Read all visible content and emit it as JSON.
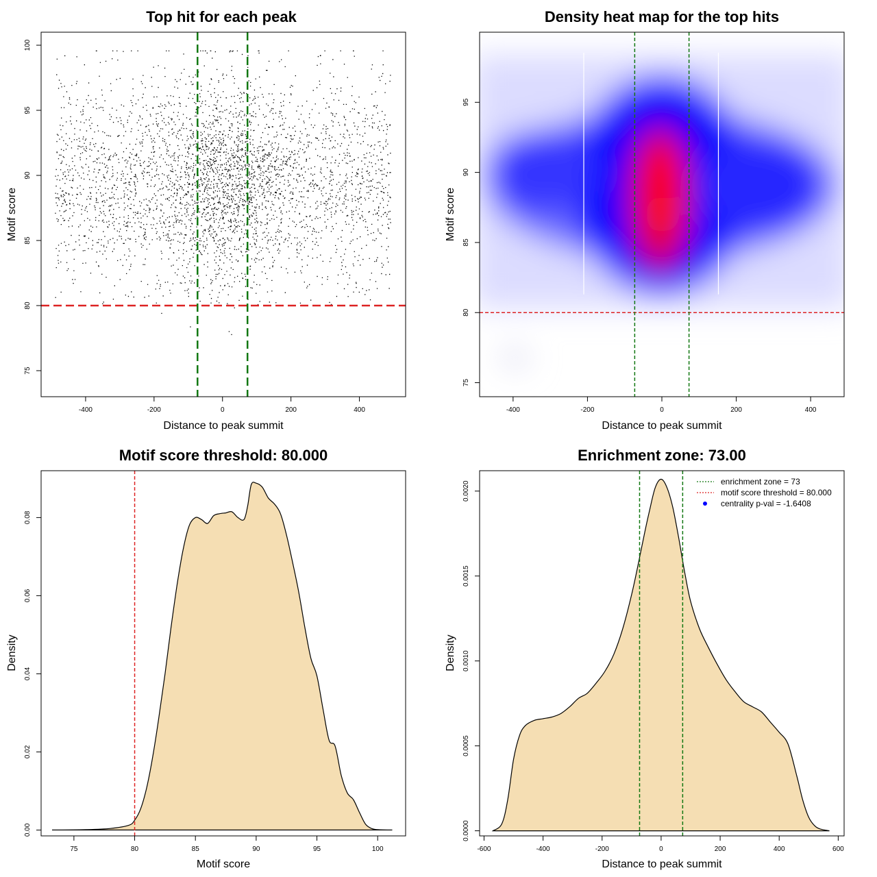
{
  "colors": {
    "points": "#000000",
    "threshold_line": "#dd2222",
    "zone_line": "#117711",
    "density_fill": "#f5deb3",
    "heat_low": "#0000ff",
    "heat_high": "#ff0000",
    "legend_point": "#0000ff"
  },
  "chart_data": [
    {
      "id": "scatter",
      "type": "scatter",
      "title": "Top hit for each peak",
      "xlabel": "Distance to peak summit",
      "ylabel": "Motif score",
      "xlim": [
        -530,
        535
      ],
      "ylim": [
        73,
        101
      ],
      "xticks": [
        -400,
        -200,
        0,
        200,
        400
      ],
      "yticks": [
        75,
        80,
        85,
        90,
        95,
        100
      ],
      "x_range": [
        -490,
        490
      ],
      "hline": 80,
      "vlines": [
        -73,
        73
      ],
      "point_count": 9000
    },
    {
      "id": "heatmap",
      "type": "heatmap",
      "title": "Density heat map for the top hits",
      "xlabel": "Distance to peak summit",
      "ylabel": "Motif score",
      "xlim": [
        -490,
        490
      ],
      "ylim": [
        74,
        100
      ],
      "xticks": [
        -400,
        -200,
        0,
        200,
        400
      ],
      "yticks": [
        75,
        80,
        85,
        90,
        95
      ],
      "hline": 80,
      "vlines": [
        -73,
        73
      ],
      "white_vlines": [
        -210,
        152
      ],
      "hotspots": [
        {
          "x": 0,
          "y": 90,
          "level": "max"
        },
        {
          "x": 0,
          "y": 87,
          "level": "high"
        }
      ]
    },
    {
      "id": "score-density",
      "type": "area",
      "title": "Motif score threshold: 80.000",
      "xlabel": "Motif score",
      "ylabel": "Density",
      "xlim": [
        72.3,
        102.3
      ],
      "ylim": [
        -0.0015,
        0.092
      ],
      "xticks": [
        75,
        80,
        85,
        90,
        95,
        100
      ],
      "yticks": [
        0.0,
        0.02,
        0.04,
        0.06,
        0.08
      ],
      "ytick_labels": [
        "0.00",
        "0.02",
        "0.04",
        "0.06",
        "0.08"
      ],
      "vline": 80,
      "x": [
        73.2,
        76,
        78,
        79.5,
        80,
        80.5,
        81,
        81.5,
        82,
        82.5,
        83,
        83.5,
        84,
        84.5,
        85,
        85.5,
        86,
        86.5,
        87,
        87.5,
        88,
        88.5,
        89,
        89.3,
        89.6,
        90,
        90.5,
        91,
        91.5,
        92,
        92.5,
        93,
        93.5,
        94,
        94.5,
        95,
        95.5,
        96,
        96.5,
        97,
        97.5,
        98,
        98.5,
        99,
        99.5,
        100,
        101.2
      ],
      "y": [
        0.0,
        0.0001,
        0.0004,
        0.0012,
        0.0025,
        0.0055,
        0.011,
        0.019,
        0.029,
        0.04,
        0.052,
        0.063,
        0.072,
        0.078,
        0.08,
        0.0795,
        0.0785,
        0.0805,
        0.081,
        0.0812,
        0.0815,
        0.08,
        0.0795,
        0.083,
        0.0885,
        0.0888,
        0.0878,
        0.085,
        0.0835,
        0.081,
        0.0755,
        0.0685,
        0.061,
        0.052,
        0.044,
        0.0395,
        0.031,
        0.023,
        0.0215,
        0.014,
        0.0095,
        0.0078,
        0.0045,
        0.0015,
        0.0004,
        0.0001,
        0.0
      ]
    },
    {
      "id": "distance-density",
      "type": "area",
      "title": "Enrichment zone: 73.00",
      "xlabel": "Distance to peak summit",
      "ylabel": "Density",
      "xlim": [
        -615,
        620
      ],
      "ylim": [
        -3e-05,
        0.00212
      ],
      "xticks": [
        -600,
        -400,
        -200,
        0,
        200,
        400,
        600
      ],
      "yticks": [
        0.0,
        0.0005,
        0.001,
        0.0015,
        0.002
      ],
      "ytick_labels": [
        "0.0000",
        "0.0005",
        "0.0010",
        "0.0015",
        "0.0020"
      ],
      "vlines": [
        -73,
        73
      ],
      "x": [
        -570,
        -540,
        -520,
        -500,
        -480,
        -460,
        -430,
        -400,
        -370,
        -340,
        -310,
        -280,
        -250,
        -220,
        -190,
        -160,
        -130,
        -100,
        -80,
        -60,
        -40,
        -20,
        0,
        20,
        40,
        60,
        80,
        100,
        130,
        160,
        190,
        220,
        250,
        280,
        310,
        340,
        370,
        400,
        430,
        460,
        480,
        500,
        520,
        540,
        570
      ],
      "y": [
        0.0,
        4e-05,
        0.00018,
        0.00042,
        0.00056,
        0.00062,
        0.00065,
        0.00066,
        0.00067,
        0.00069,
        0.00073,
        0.00078,
        0.00081,
        0.00087,
        0.00094,
        0.00104,
        0.00119,
        0.00139,
        0.00155,
        0.00172,
        0.00188,
        0.00202,
        0.00207,
        0.00202,
        0.0019,
        0.00172,
        0.00152,
        0.00135,
        0.00119,
        0.00108,
        0.00098,
        0.00089,
        0.00082,
        0.00076,
        0.00073,
        0.0007,
        0.00064,
        0.00058,
        0.00051,
        0.00032,
        0.00018,
        8e-05,
        3e-05,
        1e-05,
        0.0
      ],
      "legend": [
        {
          "label": "enrichment zone = 73",
          "kind": "dotted-line",
          "color": "#117711"
        },
        {
          "label": "motif score threshold = 80.000",
          "kind": "dotted-line",
          "color": "#dd2222"
        },
        {
          "label": "centrality p-val = -1.6408",
          "kind": "point",
          "color": "#0000ff"
        }
      ],
      "legend_position": "top-right"
    }
  ]
}
